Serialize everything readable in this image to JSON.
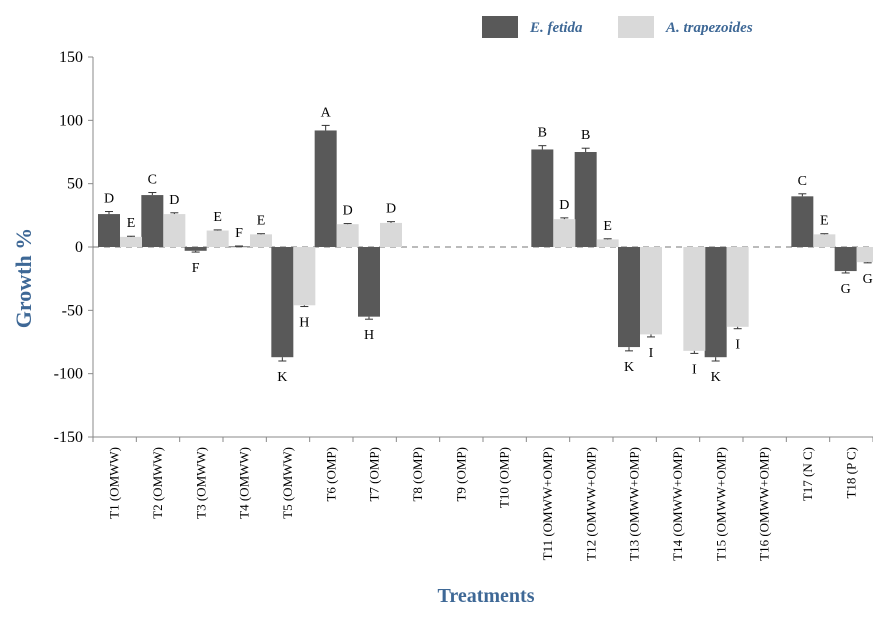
{
  "chart_data": {
    "type": "bar",
    "xlabel": "Treatments",
    "ylabel": "Growth %",
    "ylim": [
      -150,
      150
    ],
    "yticks": [
      150,
      100,
      50,
      0,
      -50,
      -100,
      -150
    ],
    "categories": [
      "T1 (OMWW)",
      "T2 (OMWW)",
      "T3 (OMWW)",
      "T4 (OMWW)",
      "T5 (OMWW)",
      "T6 (OMP)",
      "T7 (OMP)",
      "T8 (OMP)",
      "T9 (OMP)",
      "T10 (OMP)",
      "T11 (OMWW+OMP)",
      "T12 (OMWW+OMP)",
      "T13 (OMWW+OMP)",
      "T14 (OMWW+OMP)",
      "T15 (OMWW+OMP)",
      "T16 (OMWW+OMP)",
      "T17 (N C)",
      "T18 (P C)"
    ],
    "series": [
      {
        "name": "E. fetida",
        "color": "#595959",
        "values": [
          26,
          41,
          -3,
          0.5,
          -87,
          92,
          -55,
          null,
          null,
          null,
          77,
          75,
          -79,
          null,
          -87,
          null,
          40,
          -19
        ],
        "errors": [
          2,
          2,
          1,
          0.3,
          3,
          4,
          2,
          null,
          null,
          null,
          3,
          3,
          3,
          null,
          3,
          null,
          2,
          1.5
        ],
        "letters": [
          "D",
          "C",
          "F",
          "F",
          "K",
          "A",
          "H",
          null,
          null,
          null,
          "B",
          "B",
          "K",
          null,
          "K",
          null,
          "C",
          "G"
        ]
      },
      {
        "name": "A. trapezoides",
        "color": "#d9d9d9",
        "values": [
          8,
          26,
          13,
          10,
          -46,
          18,
          19,
          null,
          null,
          null,
          22,
          6,
          -69,
          -82,
          -63,
          null,
          10,
          -12
        ],
        "errors": [
          0.5,
          1,
          0.5,
          0.5,
          1,
          0.5,
          1,
          null,
          null,
          null,
          1,
          0.5,
          2,
          2,
          1.5,
          null,
          0.5,
          0.5
        ],
        "letters": [
          "E",
          "D",
          "E",
          "E",
          "H",
          "D",
          "D",
          null,
          null,
          null,
          "D",
          "E",
          "I",
          "I",
          "I",
          null,
          "E",
          "G"
        ]
      }
    ],
    "legend_position": "top-right",
    "zero_line": "dashed"
  }
}
